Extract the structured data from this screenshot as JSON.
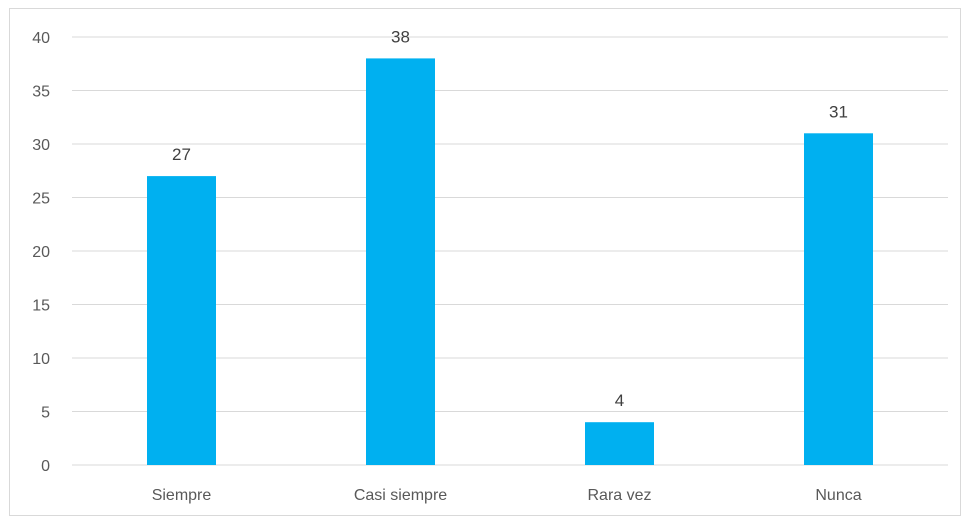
{
  "chart_data": {
    "type": "bar",
    "categories": [
      "Siempre",
      "Casi siempre",
      "Rara vez",
      "Nunca"
    ],
    "values": [
      27,
      38,
      4,
      31
    ],
    "data_labels": [
      "27",
      "38",
      "4",
      "31"
    ],
    "y_ticks": [
      0,
      5,
      10,
      15,
      20,
      25,
      30,
      35,
      40
    ],
    "ylim": [
      0,
      40
    ],
    "title": "",
    "xlabel": "",
    "ylabel": "",
    "grid": true,
    "legend": "none",
    "bar_color": "#00b0f0"
  }
}
